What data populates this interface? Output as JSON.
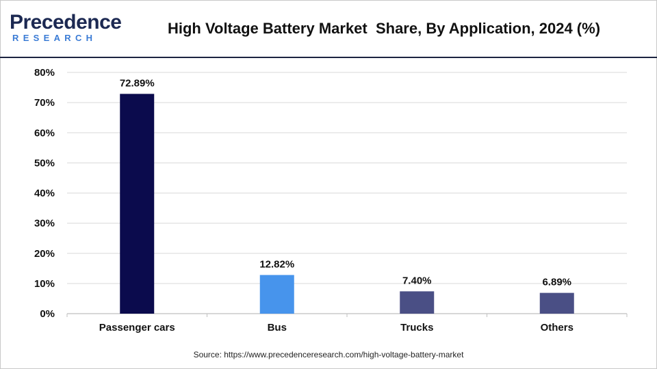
{
  "header": {
    "logo_main": "Precedence",
    "logo_sub": "RESEARCH",
    "title": "High Voltage Battery Market  Share, By Application, 2024 (%)"
  },
  "footer": {
    "source": "Source: https://www.precedenceresearch.com/high-voltage-battery-market"
  },
  "chart_data": {
    "type": "bar",
    "title": "High Voltage Battery Market  Share, By Application, 2024 (%)",
    "xlabel": "",
    "ylabel": "",
    "categories": [
      "Passenger cars",
      "Bus",
      "Trucks",
      "Others"
    ],
    "values": [
      72.89,
      12.82,
      7.4,
      6.89
    ],
    "value_labels": [
      "72.89%",
      "12.82%",
      "7.40%",
      "6.89%"
    ],
    "bar_colors": [
      "#0b0b4d",
      "#4794ec",
      "#4a4f85",
      "#4a4f85"
    ],
    "ylim": [
      0,
      80
    ],
    "yticks": [
      0,
      10,
      20,
      30,
      40,
      50,
      60,
      70,
      80
    ],
    "ytick_labels": [
      "0%",
      "10%",
      "20%",
      "30%",
      "40%",
      "50%",
      "60%",
      "70%",
      "80%"
    ],
    "grid": true,
    "legend": "none"
  },
  "colors": {
    "brand_dark": "#1c2952",
    "brand_accent": "#3a7bd5",
    "grid": "#d9d9d9",
    "axis": "#bfbfbf"
  }
}
